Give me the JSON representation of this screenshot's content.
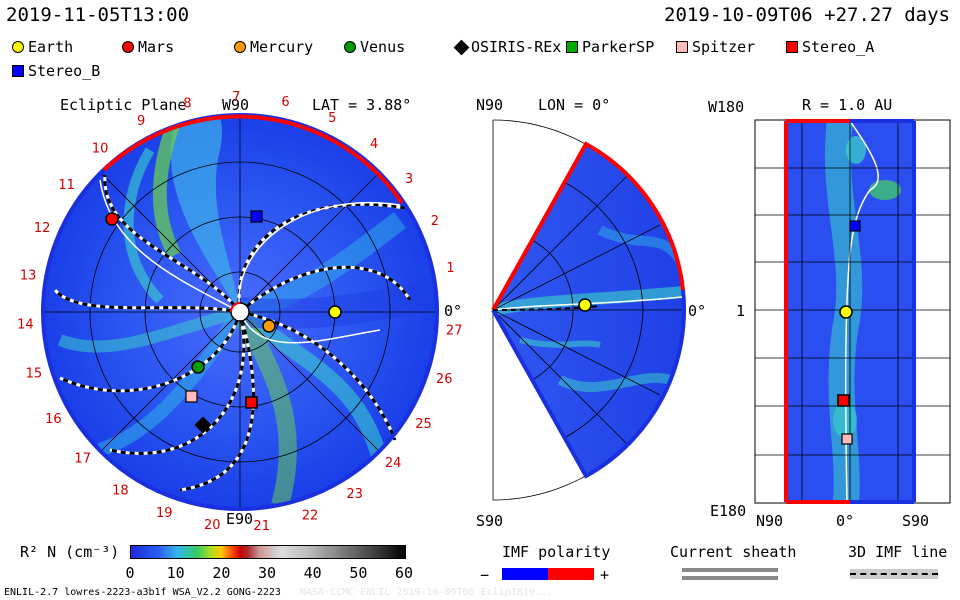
{
  "header": {
    "time_left": "2019-11-05T13:00",
    "time_right": "2019-10-09T06 +27.27 days"
  },
  "legend": [
    {
      "label": "Earth",
      "color": "#ffff00",
      "shape": "circle"
    },
    {
      "label": "Mars",
      "color": "#ff0000",
      "shape": "circle"
    },
    {
      "label": "Mercury",
      "color": "#ff9900",
      "shape": "circle"
    },
    {
      "label": "Venus",
      "color": "#009900",
      "shape": "circle"
    },
    {
      "label": "OSIRIS-REx",
      "color": "#000000",
      "shape": "diamond"
    },
    {
      "label": "ParkerSP",
      "color": "#00aa00",
      "shape": "square"
    },
    {
      "label": "Spitzer",
      "color": "#ffbbbb",
      "shape": "square"
    },
    {
      "label": "Stereo_A",
      "color": "#ff0000",
      "shape": "square"
    },
    {
      "label": "Stereo_B",
      "color": "#0000ff",
      "shape": "square"
    }
  ],
  "ecliptic": {
    "title": "Ecliptic Plane",
    "w90": "W90",
    "lat": "LAT = 3.88°",
    "e90": "E90",
    "zero": "0°",
    "day_numbers": [
      "1",
      "2",
      "3",
      "4",
      "5",
      "6",
      "7",
      "8",
      "9",
      "10",
      "11",
      "12",
      "13",
      "14",
      "15",
      "16",
      "17",
      "18",
      "19",
      "20",
      "21",
      "22",
      "23",
      "24",
      "25",
      "26",
      "27"
    ]
  },
  "meridional": {
    "n90": "N90",
    "lon": "LON = 0°",
    "s90": "S90",
    "zero": "0°"
  },
  "latlon": {
    "w180": "W180",
    "r": "R = 1.0 AU",
    "one": "1",
    "e180": "E180",
    "n90": "N90",
    "zero": "0°",
    "s90": "S90"
  },
  "colorbar": {
    "label": "R² N (cm⁻³)",
    "ticks": [
      "0",
      "10",
      "20",
      "30",
      "40",
      "50",
      "60"
    ]
  },
  "imf": {
    "title": "IMF polarity",
    "minus": "−",
    "plus": "+"
  },
  "current_sheath": {
    "title": "Current sheath"
  },
  "imf_line": {
    "title": "3D IMF line"
  },
  "footer": {
    "model": "ENLIL-2.7 lowres-2223-a3b1f WSA_V2.2 GONG-2223",
    "faint": "NASA-CCMC ENLIL 2019-10-09T06 Eclip1819..."
  },
  "colors": {
    "sw_blue": "#2244ee",
    "dark_blue": "#1a2fe0",
    "cyan": "#00d8e0",
    "green": "#33cc33",
    "red_axis": "#ff0000",
    "red_text": "#d00000"
  }
}
